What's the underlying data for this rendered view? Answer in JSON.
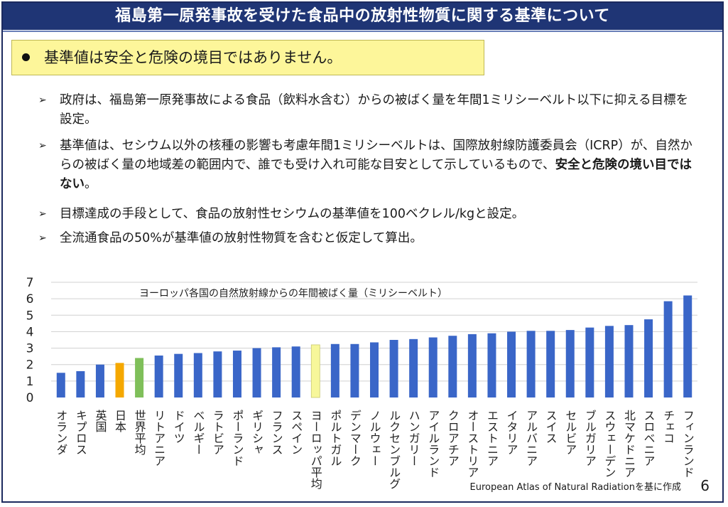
{
  "title": "福島第一原発事故を受けた食品中の放射性物質に関する基準について",
  "callout": "基準値は安全と危険の境目ではありません。",
  "bullets": {
    "b1": "政府は、福島第一原発事故による食品（飲料水含む）からの被ばく量を年間1ミリシーベルト以下に抑える目標を設定。",
    "b2_pre": "基準値は、セシウム以外の核種の影響も考慮年間1ミリシーベルトは、国際放射線防護委員会（ICRP）が、自然からの被ばく量の地域差の範囲内で、誰でも受け入れ可能な目安として示しているもので、",
    "b2_bold": "安全と危険の境い目ではない",
    "b2_post": "。",
    "b3": "目標達成の手段として、食品の放射性セシウムの基準値を100ベクレル/kgと設定。",
    "b4": "全流通食品の50%が基準値の放射性物質を含むと仮定して算出。"
  },
  "chart_data": {
    "type": "bar",
    "title": "ヨーロッパ各国の自然放射線からの年間被ばく量（ミリシーベルト）",
    "ylim": [
      0,
      7
    ],
    "yticks": [
      "0",
      "1",
      "2",
      "3",
      "4",
      "5",
      "6",
      "7"
    ],
    "categories": [
      "オランダ",
      "キプロス",
      "英国",
      "日本",
      "世界平均",
      "リトアニア",
      "ドイツ",
      "ベルギー",
      "ラトビア",
      "ポーランド",
      "ギリシャ",
      "フランス",
      "スペイン",
      "ヨーロッパ平均",
      "ポルトガル",
      "デンマーク",
      "ノルウェー",
      "ルクセンブルグ",
      "ハンガリー",
      "アイルランド",
      "クロアチア",
      "オーストリア",
      "エストニア",
      "イタリア",
      "アルバニア",
      "スイス",
      "セルビア",
      "ブルガリア",
      "スウェーデン",
      "北マケドニア",
      "スロベニア",
      "チェコ",
      "フィンランド"
    ],
    "values": [
      1.5,
      1.6,
      2.0,
      2.1,
      2.4,
      2.55,
      2.65,
      2.7,
      2.8,
      2.85,
      3.0,
      3.05,
      3.1,
      3.2,
      3.25,
      3.25,
      3.35,
      3.5,
      3.55,
      3.65,
      3.75,
      3.85,
      3.9,
      4.0,
      4.05,
      4.05,
      4.1,
      4.25,
      4.35,
      4.4,
      4.75,
      5.85,
      6.2
    ],
    "colors": {
      "default": "#3a66c8",
      "japan": "#f5a800",
      "world": "#7fbf5a",
      "europe": "#f7f79a"
    },
    "grid": true
  },
  "source": "European Atlas of Natural Radiationを基に作成",
  "page_number": "6"
}
